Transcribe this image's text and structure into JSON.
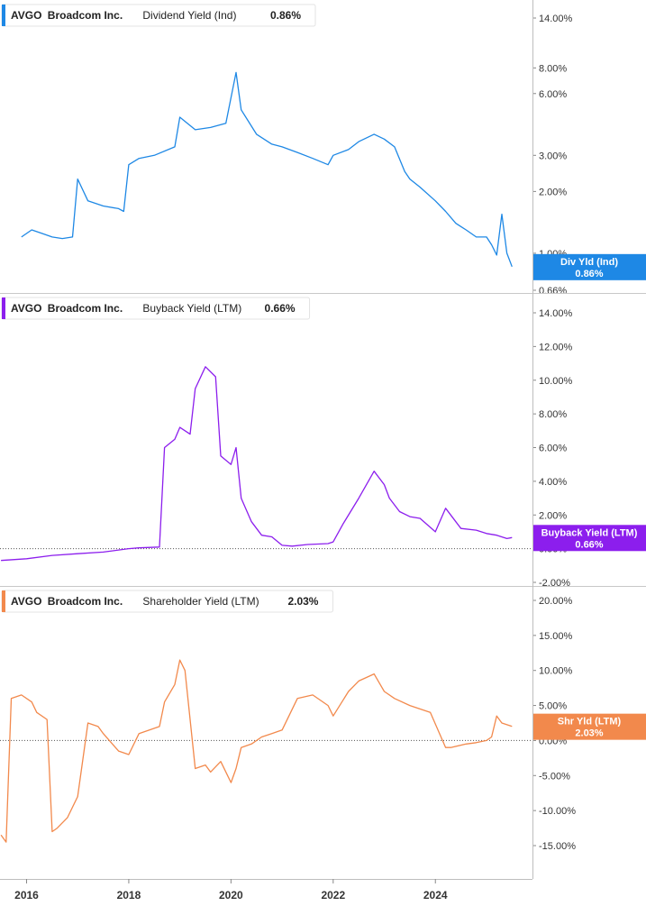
{
  "chart_data": [
    {
      "type": "line",
      "ticker": "AVGO",
      "company": "Broadcom Inc.",
      "metric": "Dividend Yield (Ind)",
      "last_value": "0.86%",
      "badge_label": "Div Yld (Ind)",
      "badge_value": "0.86%",
      "color": "#1e88e5",
      "scale": "log",
      "y_ticks": [
        {
          "v": 14.0,
          "label": "14.00%"
        },
        {
          "v": 8.0,
          "label": "8.00%"
        },
        {
          "v": 6.0,
          "label": "6.00%"
        },
        {
          "v": 3.0,
          "label": "3.00%"
        },
        {
          "v": 2.0,
          "label": "2.00%"
        },
        {
          "v": 1.0,
          "label": "1.00%"
        },
        {
          "v": 0.66,
          "label": "0.66%"
        }
      ],
      "x": [
        2015.9,
        2016.1,
        2016.3,
        2016.5,
        2016.7,
        2016.9,
        2017.0,
        2017.2,
        2017.5,
        2017.8,
        2017.9,
        2018.0,
        2018.2,
        2018.5,
        2018.9,
        2019.0,
        2019.3,
        2019.6,
        2019.9,
        2020.1,
        2020.2,
        2020.5,
        2020.8,
        2021.0,
        2021.3,
        2021.6,
        2021.9,
        2022.0,
        2022.3,
        2022.5,
        2022.8,
        2023.0,
        2023.2,
        2023.4,
        2023.5,
        2023.7,
        2024.0,
        2024.2,
        2024.4,
        2024.6,
        2024.8,
        2025.0,
        2025.1,
        2025.2,
        2025.3,
        2025.4,
        2025.5
      ],
      "values": [
        1.2,
        1.3,
        1.25,
        1.2,
        1.18,
        1.2,
        2.3,
        1.8,
        1.7,
        1.65,
        1.6,
        2.7,
        2.9,
        3.0,
        3.3,
        4.6,
        4.0,
        4.1,
        4.3,
        7.6,
        5.0,
        3.8,
        3.4,
        3.3,
        3.1,
        2.9,
        2.7,
        3.0,
        3.2,
        3.5,
        3.8,
        3.6,
        3.3,
        2.5,
        2.3,
        2.1,
        1.8,
        1.6,
        1.4,
        1.3,
        1.2,
        1.2,
        1.1,
        0.98,
        1.55,
        1.0,
        0.86
      ]
    },
    {
      "type": "line",
      "ticker": "AVGO",
      "company": "Broadcom Inc.",
      "metric": "Buyback Yield (LTM)",
      "last_value": "0.66%",
      "badge_label": "Buyback Yield (LTM)",
      "badge_value": "0.66%",
      "color": "#8c1eed",
      "scale": "linear",
      "ylim": [
        -2.0,
        15.0
      ],
      "zero_line": 0,
      "y_ticks": [
        {
          "v": 14,
          "label": "14.00%"
        },
        {
          "v": 12,
          "label": "12.00%"
        },
        {
          "v": 10,
          "label": "10.00%"
        },
        {
          "v": 8,
          "label": "8.00%"
        },
        {
          "v": 6,
          "label": "6.00%"
        },
        {
          "v": 4,
          "label": "4.00%"
        },
        {
          "v": 2,
          "label": "2.00%"
        },
        {
          "v": 0,
          "label": "0.00%"
        },
        {
          "v": -2,
          "label": "-2.00%"
        }
      ],
      "x": [
        2015.5,
        2016.0,
        2016.5,
        2017.0,
        2017.5,
        2018.0,
        2018.2,
        2018.6,
        2018.7,
        2018.9,
        2019.0,
        2019.2,
        2019.3,
        2019.5,
        2019.7,
        2019.8,
        2020.0,
        2020.1,
        2020.2,
        2020.4,
        2020.6,
        2020.8,
        2021.0,
        2021.2,
        2021.5,
        2021.9,
        2022.0,
        2022.2,
        2022.5,
        2022.8,
        2023.0,
        2023.1,
        2023.3,
        2023.5,
        2023.7,
        2024.0,
        2024.2,
        2024.4,
        2024.5,
        2024.8,
        2025.0,
        2025.2,
        2025.4,
        2025.5
      ],
      "values": [
        -0.7,
        -0.6,
        -0.4,
        -0.3,
        -0.2,
        0.0,
        0.05,
        0.1,
        6.0,
        6.5,
        7.2,
        6.8,
        9.5,
        10.8,
        10.2,
        5.5,
        5.0,
        6.0,
        3.0,
        1.6,
        0.8,
        0.7,
        0.2,
        0.15,
        0.25,
        0.3,
        0.4,
        1.5,
        3.0,
        4.6,
        3.8,
        3.0,
        2.2,
        1.9,
        1.8,
        1.0,
        2.4,
        1.6,
        1.2,
        1.1,
        0.9,
        0.8,
        0.6,
        0.66
      ]
    },
    {
      "type": "line",
      "ticker": "AVGO",
      "company": "Broadcom Inc.",
      "metric": "Shareholder Yield (LTM)",
      "last_value": "2.03%",
      "badge_label": "Shr Yld (LTM)",
      "badge_value": "2.03%",
      "color": "#f2894c",
      "scale": "linear",
      "ylim": [
        -17.0,
        21.0
      ],
      "zero_line": 0,
      "y_ticks": [
        {
          "v": 20,
          "label": "20.00%"
        },
        {
          "v": 15,
          "label": "15.00%"
        },
        {
          "v": 10,
          "label": "10.00%"
        },
        {
          "v": 5,
          "label": "5.00%"
        },
        {
          "v": 0,
          "label": "0.00%"
        },
        {
          "v": -5,
          "label": "-5.00%"
        },
        {
          "v": -10,
          "label": "-10.00%"
        },
        {
          "v": -15,
          "label": "-15.00%"
        }
      ],
      "x": [
        2015.5,
        2015.6,
        2015.7,
        2015.9,
        2016.1,
        2016.2,
        2016.4,
        2016.5,
        2016.6,
        2016.8,
        2017.0,
        2017.2,
        2017.4,
        2017.5,
        2017.8,
        2018.0,
        2018.2,
        2018.6,
        2018.7,
        2018.9,
        2019.0,
        2019.1,
        2019.3,
        2019.5,
        2019.6,
        2019.8,
        2020.0,
        2020.1,
        2020.2,
        2020.4,
        2020.6,
        2020.8,
        2021.0,
        2021.3,
        2021.6,
        2021.9,
        2022.0,
        2022.3,
        2022.5,
        2022.8,
        2023.0,
        2023.2,
        2023.5,
        2023.9,
        2024.2,
        2024.3,
        2024.6,
        2024.8,
        2025.0,
        2025.1,
        2025.2,
        2025.3,
        2025.5
      ],
      "values": [
        -13.5,
        -14.5,
        6.0,
        6.5,
        5.5,
        4.0,
        3.0,
        -13.0,
        -12.5,
        -11.0,
        -8.0,
        2.5,
        2.0,
        1.0,
        -1.5,
        -2.0,
        1.0,
        2.0,
        5.5,
        8.0,
        11.5,
        10.0,
        -4.0,
        -3.5,
        -4.5,
        -3.0,
        -6.0,
        -4.0,
        -1.0,
        -0.5,
        0.5,
        1.0,
        1.5,
        6.0,
        6.5,
        5.0,
        3.5,
        7.0,
        8.5,
        9.5,
        7.0,
        6.0,
        5.0,
        4.0,
        -1.0,
        -1.0,
        -0.5,
        -0.3,
        0.0,
        0.5,
        3.5,
        2.5,
        2.03
      ]
    }
  ],
  "x_axis": {
    "ticks": [
      {
        "v": 2016,
        "label": "2016"
      },
      {
        "v": 2018,
        "label": "2018"
      },
      {
        "v": 2020,
        "label": "2020"
      },
      {
        "v": 2022,
        "label": "2022"
      },
      {
        "v": 2024,
        "label": "2024"
      }
    ]
  }
}
